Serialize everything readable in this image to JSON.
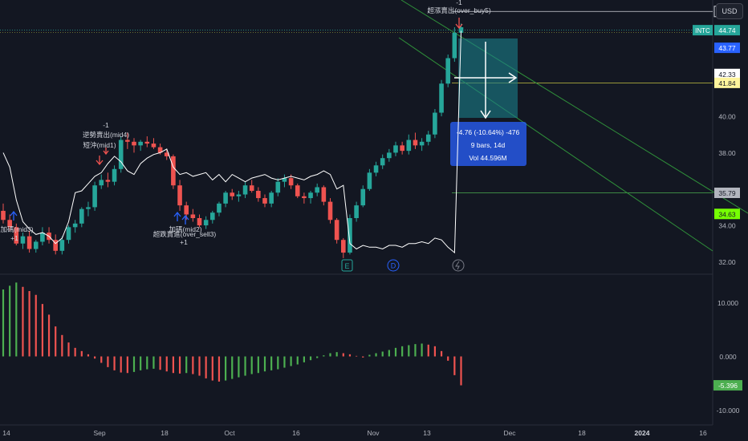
{
  "currency": "USD",
  "ticker": "INTC",
  "colors": {
    "background": "#131722",
    "up": "#26a69a",
    "down": "#ef5350",
    "hist_up": "#4caf50",
    "hist_down": "#ef5350",
    "measure": "#1a7f8a",
    "measure_label": "#2962ff",
    "trend": "#2f8f3a",
    "level_yellow": "#c4c441",
    "level_green": "#4caf50",
    "white": "#ffffff"
  },
  "price_axis": {
    "labels": [
      {
        "value": 45.77,
        "text": "45.77",
        "style": "plain"
      },
      {
        "value": 44.74,
        "text": "44.74",
        "style": "ticker"
      },
      {
        "value": 43.77,
        "text": "43.77",
        "style": "blue"
      },
      {
        "value": 42.33,
        "text": "42.33",
        "style": "white"
      },
      {
        "value": 41.84,
        "text": "41.84",
        "style": "yellow"
      },
      {
        "value": 40.0,
        "text": "40.00",
        "style": "tick"
      },
      {
        "value": 38.0,
        "text": "38.00",
        "style": "tick"
      },
      {
        "value": 35.79,
        "text": "35.79",
        "style": "gray"
      },
      {
        "value": 34.63,
        "text": "34.63",
        "style": "green"
      },
      {
        "value": 34.0,
        "text": "34.00",
        "style": "tick"
      },
      {
        "value": 32.0,
        "text": "32.00",
        "style": "tick"
      }
    ]
  },
  "osc_axis": {
    "labels": [
      {
        "value": 10,
        "text": "10.000",
        "style": "tick"
      },
      {
        "value": 0,
        "text": "0.000",
        "style": "tick"
      },
      {
        "value": -5.396,
        "text": "-5.396",
        "style": "green"
      },
      {
        "value": -10,
        "text": "-10.000",
        "style": "tick"
      }
    ]
  },
  "time_axis": {
    "labels": [
      "14",
      "Sep",
      "18",
      "Oct",
      "16",
      "Nov",
      "13",
      "Dec",
      "18",
      "2024",
      "16"
    ],
    "bold_label": "2024"
  },
  "annotations": {
    "top_signal_count": "-1",
    "top_signal": "超漲賣出(over_buy5)",
    "mid4_count": "-1",
    "mid4_signal": "逆勢賣出(mid4)",
    "mid1_signal": "短沖(mid1)",
    "mid3_signal": "加碼(mid3)",
    "mid3_count": "+1",
    "sell3_signal": "超跌賣進(over_sell3)",
    "sell3_overlap": "加碼(mid2)",
    "sell3_count": "+1"
  },
  "measure_box": {
    "line1": "-4.76 (-10.64%) -476",
    "line2": "9 bars, 14d",
    "line3": "Vol 44.596M"
  },
  "event_icons": {
    "earnings": "E",
    "dividend": "D"
  },
  "chart_data": {
    "type": "candlestick",
    "ohlc": [
      [
        34.8,
        35.2,
        34.1,
        34.3
      ],
      [
        34.3,
        34.6,
        33.7,
        33.9
      ],
      [
        33.9,
        34.1,
        32.9,
        33.0
      ],
      [
        33.0,
        33.6,
        32.7,
        33.4
      ],
      [
        33.4,
        33.7,
        32.5,
        32.7
      ],
      [
        32.7,
        33.2,
        32.5,
        33.1
      ],
      [
        33.1,
        33.9,
        32.9,
        33.6
      ],
      [
        33.6,
        33.9,
        33.0,
        33.2
      ],
      [
        33.2,
        33.5,
        32.4,
        32.6
      ],
      [
        32.6,
        33.4,
        32.4,
        33.2
      ],
      [
        33.2,
        34.0,
        33.0,
        33.9
      ],
      [
        33.9,
        34.3,
        33.6,
        34.1
      ],
      [
        34.1,
        35.0,
        33.9,
        34.9
      ],
      [
        34.9,
        35.3,
        34.5,
        35.0
      ],
      [
        35.0,
        36.4,
        34.8,
        36.2
      ],
      [
        36.2,
        36.8,
        36.0,
        36.5
      ],
      [
        36.5,
        36.9,
        36.1,
        36.4
      ],
      [
        36.4,
        37.3,
        36.2,
        37.1
      ],
      [
        37.1,
        38.9,
        36.9,
        38.7
      ],
      [
        38.7,
        39.1,
        38.2,
        38.6
      ],
      [
        38.6,
        38.8,
        38.0,
        38.4
      ],
      [
        38.4,
        38.7,
        38.1,
        38.6
      ],
      [
        38.6,
        38.9,
        38.3,
        38.5
      ],
      [
        38.5,
        38.8,
        38.2,
        38.3
      ],
      [
        38.3,
        38.5,
        37.9,
        38.0
      ],
      [
        38.0,
        38.2,
        37.6,
        37.8
      ],
      [
        37.8,
        37.9,
        36.0,
        36.2
      ],
      [
        36.2,
        36.5,
        34.8,
        35.1
      ],
      [
        35.1,
        35.3,
        34.3,
        34.6
      ],
      [
        34.6,
        34.9,
        34.2,
        34.4
      ],
      [
        34.4,
        34.6,
        33.9,
        34.0
      ],
      [
        34.0,
        34.5,
        33.8,
        34.3
      ],
      [
        34.3,
        34.8,
        34.1,
        34.7
      ],
      [
        34.7,
        35.3,
        34.5,
        35.2
      ],
      [
        35.2,
        35.9,
        35.0,
        35.8
      ],
      [
        35.8,
        36.0,
        35.4,
        35.6
      ],
      [
        35.6,
        35.9,
        35.3,
        35.7
      ],
      [
        35.7,
        36.4,
        35.5,
        36.2
      ],
      [
        36.2,
        36.5,
        35.8,
        35.9
      ],
      [
        35.9,
        36.1,
        35.3,
        35.5
      ],
      [
        35.5,
        35.7,
        35.0,
        35.2
      ],
      [
        35.2,
        35.9,
        35.0,
        35.8
      ],
      [
        35.8,
        36.6,
        35.6,
        36.4
      ],
      [
        36.4,
        36.8,
        36.1,
        36.6
      ],
      [
        36.6,
        36.8,
        36.0,
        36.2
      ],
      [
        36.2,
        36.3,
        35.5,
        35.6
      ],
      [
        35.6,
        35.8,
        35.2,
        35.5
      ],
      [
        35.5,
        35.9,
        35.2,
        35.8
      ],
      [
        35.8,
        36.3,
        35.6,
        36.1
      ],
      [
        36.1,
        36.2,
        35.1,
        35.3
      ],
      [
        35.3,
        35.5,
        34.1,
        34.3
      ],
      [
        34.3,
        34.4,
        33.0,
        33.2
      ],
      [
        33.2,
        33.3,
        32.2,
        32.5
      ],
      [
        32.5,
        34.6,
        32.4,
        34.4
      ],
      [
        34.4,
        35.3,
        34.2,
        35.1
      ],
      [
        35.1,
        36.2,
        35.0,
        36.0
      ],
      [
        36.0,
        37.1,
        35.9,
        36.9
      ],
      [
        36.9,
        37.5,
        36.7,
        37.3
      ],
      [
        37.3,
        37.9,
        37.1,
        37.7
      ],
      [
        37.7,
        38.2,
        37.5,
        38.0
      ],
      [
        38.0,
        38.6,
        37.8,
        38.4
      ],
      [
        38.4,
        38.6,
        37.9,
        38.1
      ],
      [
        38.1,
        39.0,
        37.9,
        38.7
      ],
      [
        38.7,
        39.1,
        38.2,
        38.4
      ],
      [
        38.4,
        38.8,
        38.1,
        38.6
      ],
      [
        38.6,
        39.2,
        38.4,
        39.0
      ],
      [
        39.0,
        40.4,
        38.8,
        40.2
      ],
      [
        40.2,
        42.0,
        40.0,
        41.8
      ],
      [
        41.8,
        43.4,
        41.6,
        43.2
      ],
      [
        43.2,
        44.9,
        43.0,
        44.6
      ],
      [
        44.6,
        45.1,
        44.3,
        44.9
      ]
    ],
    "oscillator": [
      12.5,
      13.2,
      13.8,
      13.0,
      12.2,
      11.5,
      9.8,
      7.8,
      5.6,
      4.0,
      2.6,
      1.6,
      1.0,
      0.4,
      -0.4,
      -1.2,
      -2.0,
      -2.6,
      -3.0,
      -3.1,
      -2.9,
      -2.6,
      -2.4,
      -2.3,
      -2.5,
      -2.8,
      -3.1,
      -3.2,
      -3.1,
      -3.3,
      -3.6,
      -4.1,
      -4.5,
      -4.7,
      -4.5,
      -4.2,
      -3.9,
      -3.6,
      -3.3,
      -3.1,
      -2.8,
      -2.6,
      -2.4,
      -2.1,
      -1.8,
      -1.5,
      -1.1,
      -0.7,
      -0.3,
      0.2,
      0.6,
      0.8,
      0.6,
      0.4,
      0.1,
      -0.2,
      0.3,
      0.6,
      0.9,
      1.2,
      1.6,
      1.9,
      2.1,
      2.3,
      2.4,
      2.2,
      1.9,
      1.0,
      -0.8,
      -3.5,
      -5.396
    ],
    "overlay_line": [
      38.0,
      37.2,
      35.4,
      34.2,
      33.8,
      33.5,
      33.6,
      33.4,
      33.0,
      33.3,
      34.2,
      35.8,
      35.9,
      36.3,
      36.7,
      36.9,
      37.4,
      37.8,
      37.5,
      37.0,
      36.8,
      37.4,
      37.7,
      37.9,
      38.0,
      38.2,
      37.2,
      36.8,
      36.9,
      36.7,
      36.8,
      36.9,
      36.5,
      36.8,
      36.4,
      36.8,
      36.6,
      36.4,
      36.6,
      36.7,
      36.8,
      36.6,
      36.5,
      36.6,
      36.7,
      36.6,
      36.5,
      36.7,
      36.8,
      37.0,
      36.8,
      36.0,
      36.2,
      33.0,
      32.7,
      32.9,
      32.8,
      32.8,
      32.7,
      32.9,
      32.9,
      32.8,
      33.0,
      33.0,
      33.1,
      33.0,
      33.3,
      33.2,
      32.8,
      32.5,
      44.7
    ],
    "y_range": [
      31.4,
      46.4
    ],
    "osc_range": [
      -12.5,
      15.2
    ]
  }
}
